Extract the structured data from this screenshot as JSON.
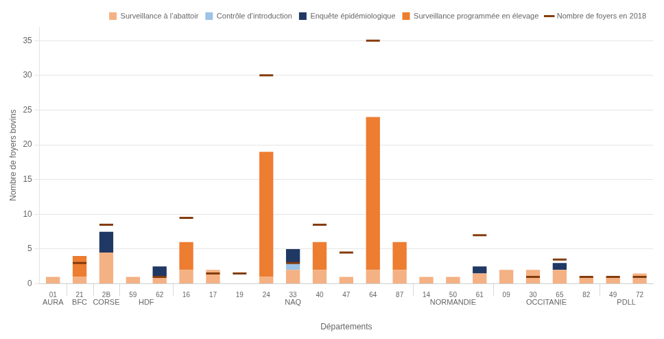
{
  "chart_data": {
    "type": "bar",
    "stacked": true,
    "xlabel": "Départements",
    "ylabel": "Nombre de foyers bovins",
    "categories": [
      "01",
      "21",
      "2B",
      "59",
      "62",
      "16",
      "17",
      "19",
      "24",
      "33",
      "40",
      "47",
      "64",
      "87",
      "14",
      "50",
      "61",
      "09",
      "30",
      "65",
      "82",
      "49",
      "72"
    ],
    "groups": [
      {
        "name": "AURA",
        "categories": [
          "01"
        ]
      },
      {
        "name": "BFC",
        "categories": [
          "21"
        ]
      },
      {
        "name": "CORSE",
        "categories": [
          "2B"
        ]
      },
      {
        "name": "HDF",
        "categories": [
          "59",
          "62"
        ]
      },
      {
        "name": "NAQ",
        "categories": [
          "16",
          "17",
          "19",
          "24",
          "33",
          "40",
          "47",
          "64",
          "87"
        ]
      },
      {
        "name": "NORMANDIE",
        "categories": [
          "14",
          "50",
          "61"
        ]
      },
      {
        "name": "OCCITANIE",
        "categories": [
          "09",
          "30",
          "65",
          "82"
        ]
      },
      {
        "name": "PDLL",
        "categories": [
          "49",
          "72"
        ]
      }
    ],
    "series": [
      {
        "name": "Surveillance à l’abattoir",
        "type": "bar",
        "color": "#f4b183",
        "values": [
          1.0,
          1.0,
          4.5,
          1.0,
          1.0,
          2.0,
          2.0,
          0.0,
          1.0,
          2.0,
          2.0,
          1.0,
          2.0,
          2.0,
          1.0,
          1.0,
          1.5,
          2.0,
          2.0,
          2.0,
          1.0,
          1.0,
          1.5
        ]
      },
      {
        "name": "Contrôle d’introduction",
        "type": "bar",
        "color": "#9dc3e6",
        "values": [
          0.0,
          0.0,
          0.0,
          0.0,
          0.0,
          0.0,
          0.0,
          0.0,
          0.0,
          1.0,
          0.0,
          0.0,
          0.0,
          0.0,
          0.0,
          0.0,
          0.0,
          0.0,
          0.0,
          0.0,
          0.0,
          0.0,
          0.0
        ]
      },
      {
        "name": "Enquête épidémiologique",
        "type": "bar",
        "color": "#203864",
        "values": [
          0.0,
          0.0,
          3.0,
          0.0,
          1.5,
          0.0,
          0.0,
          0.0,
          0.0,
          2.0,
          0.0,
          0.0,
          0.0,
          0.0,
          0.0,
          0.0,
          1.0,
          0.0,
          0.0,
          1.0,
          0.0,
          0.0,
          0.0
        ]
      },
      {
        "name": "Surveillance programmée en élevage",
        "type": "bar",
        "color": "#ed7d31",
        "values": [
          0.0,
          3.0,
          0.0,
          0.0,
          0.0,
          4.0,
          0.0,
          0.0,
          18.0,
          0.0,
          4.0,
          0.0,
          22.0,
          4.0,
          0.0,
          0.0,
          0.0,
          0.0,
          0.0,
          0.0,
          0.0,
          0.0,
          0.0
        ]
      },
      {
        "name": "Nombre de foyers en 2018",
        "type": "line",
        "marker": "dash",
        "line_style": "none",
        "color": "#843c0c",
        "values": [
          null,
          3.0,
          8.5,
          null,
          1.0,
          9.5,
          1.5,
          1.5,
          30.0,
          3.0,
          8.5,
          4.5,
          35.0,
          null,
          null,
          null,
          7.0,
          null,
          1.0,
          3.5,
          1.0,
          1.0,
          1.0
        ]
      }
    ],
    "ylim": [
      0,
      37
    ],
    "yticks": [
      0,
      5,
      10,
      15,
      20,
      25,
      30,
      35
    ],
    "grid": true,
    "legend": "upper right"
  }
}
